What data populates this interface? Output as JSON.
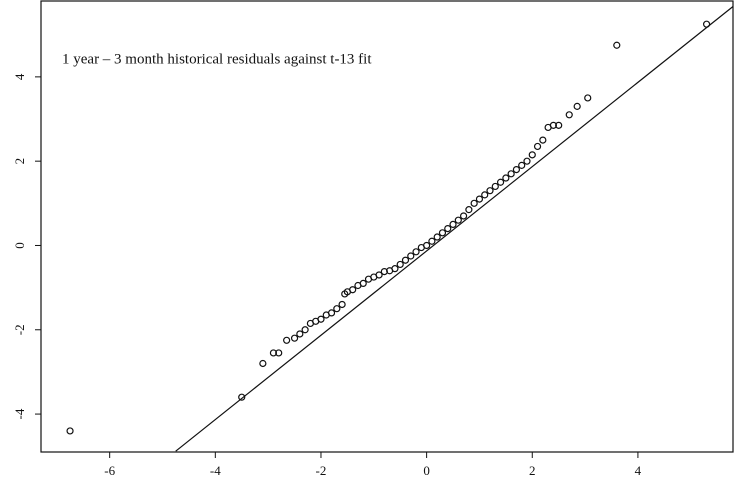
{
  "chart_data": {
    "type": "scatter",
    "title": "1 year – 3 month historical residuals against t-13 fit",
    "xlim": [
      -7.3,
      5.8
    ],
    "ylim": [
      -4.9,
      5.8
    ],
    "xticks": [
      -6,
      -4,
      -2,
      0,
      2,
      4
    ],
    "yticks": [
      -4,
      -2,
      0,
      2,
      4
    ],
    "series": [
      {
        "type": "scatter",
        "color": "#111111",
        "x": [
          -6.75,
          -3.5,
          -3.1,
          -2.9,
          -2.8,
          -2.65,
          -2.5,
          -2.4,
          -2.3,
          -2.2,
          -2.1,
          -2.0,
          -1.9,
          -1.8,
          -1.7,
          -1.6,
          -1.55,
          -1.5,
          -1.4,
          -1.3,
          -1.2,
          -1.1,
          -1.0,
          -0.9,
          -0.8,
          -0.7,
          -0.6,
          -0.5,
          -0.4,
          -0.3,
          -0.2,
          -0.1,
          0,
          0.1,
          0.2,
          0.3,
          0.4,
          0.5,
          0.6,
          0.7,
          0.8,
          0.9,
          1.0,
          1.1,
          1.2,
          1.3,
          1.4,
          1.5,
          1.6,
          1.7,
          1.8,
          1.9,
          2.0,
          2.1,
          2.2,
          2.3,
          2.4,
          2.5,
          2.7,
          2.85,
          3.05,
          3.6,
          5.3
        ],
        "values": [
          -4.4,
          -3.6,
          -2.8,
          -2.55,
          -2.55,
          -2.25,
          -2.2,
          -2.1,
          -2.0,
          -1.85,
          -1.8,
          -1.75,
          -1.65,
          -1.6,
          -1.5,
          -1.4,
          -1.15,
          -1.1,
          -1.05,
          -0.95,
          -0.9,
          -0.8,
          -0.75,
          -0.7,
          -0.62,
          -0.6,
          -0.55,
          -0.45,
          -0.35,
          -0.25,
          -0.15,
          -0.05,
          0.0,
          0.1,
          0.2,
          0.3,
          0.4,
          0.5,
          0.6,
          0.7,
          0.85,
          1.0,
          1.1,
          1.2,
          1.3,
          1.4,
          1.5,
          1.6,
          1.7,
          1.8,
          1.9,
          2.0,
          2.15,
          2.35,
          2.5,
          2.8,
          2.85,
          2.85,
          3.1,
          3.3,
          3.5,
          4.75,
          5.25
        ]
      },
      {
        "type": "line",
        "color": "#111111",
        "x": [
          -4.75,
          5.8
        ],
        "values": [
          -4.88,
          5.67
        ]
      }
    ]
  }
}
